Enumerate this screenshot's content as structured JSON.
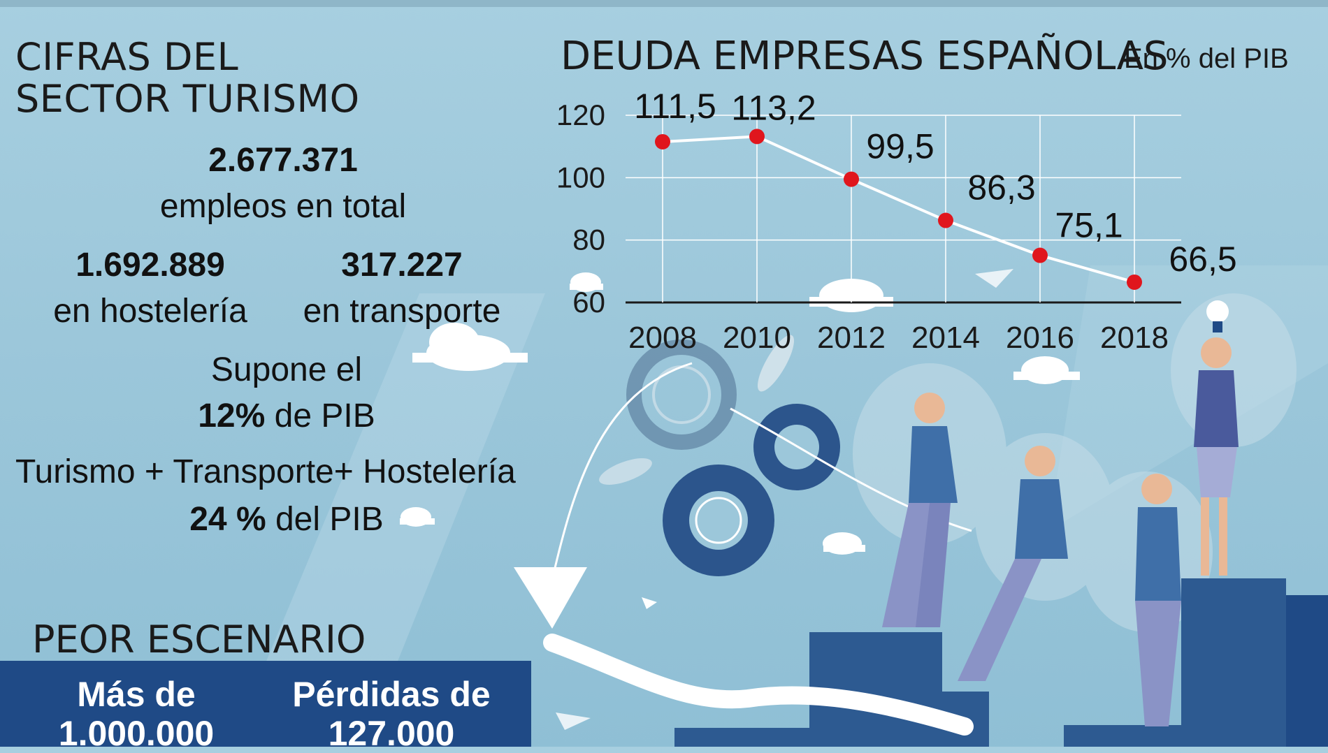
{
  "left_panel": {
    "heading_line1": "CIFRAS DEL",
    "heading_line2": "SECTOR TURISMO",
    "total_value": "2.677.371",
    "total_label": "empleos en total",
    "hosteleria_value": "1.692.889",
    "hosteleria_label": "en hostelería",
    "transporte_value": "317.227",
    "transporte_label": "en transporte",
    "pib_line1": "Supone el",
    "pib_pct": "12%",
    "pib_suffix": "de PIB",
    "sum_line": "Turismo + Transporte+ Hostelería",
    "sum_pct": "24 %",
    "sum_suffix": "del PIB"
  },
  "worst_case": {
    "heading": "PEOR ESCENARIO",
    "col1_line1": "Más de",
    "col1_line2": "1.000.000",
    "col2_line1": "Pérdidas de",
    "col2_line2": "127.000"
  },
  "chart_data": {
    "type": "line",
    "title": "DEUDA EMPRESAS ESPAÑOLAS",
    "subtitle": "En % del PIB",
    "x": [
      "2008",
      "2010",
      "2012",
      "2014",
      "2016",
      "2018"
    ],
    "values": [
      111.5,
      113.2,
      99.5,
      86.3,
      75.1,
      66.5
    ],
    "data_labels": [
      "111,5",
      "113,2",
      "99,5",
      "86,3",
      "75,1",
      "66,5"
    ],
    "y_ticks": [
      "120",
      "100",
      "80",
      "60"
    ],
    "ylim": [
      60,
      120
    ],
    "grid": true,
    "line_color": "#ffffff",
    "point_color": "#e0161d"
  },
  "colors": {
    "background": "#9cc7da",
    "dark_blue": "#1f4a86",
    "mid_blue": "#3f6f9f",
    "accent_red": "#e0161d"
  }
}
